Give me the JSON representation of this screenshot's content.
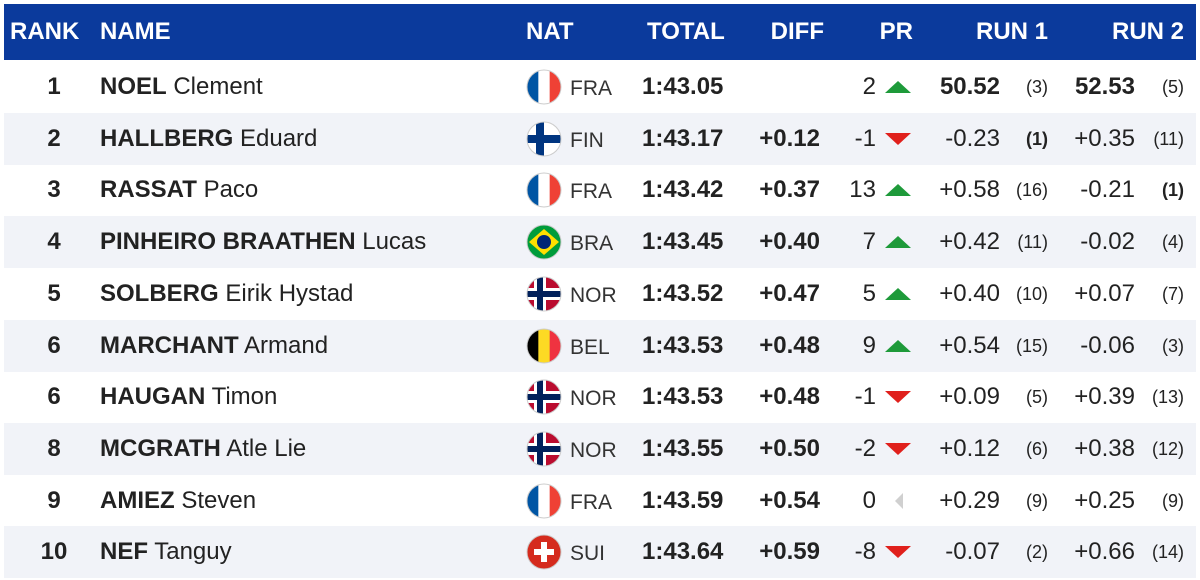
{
  "table": {
    "headers": {
      "rank": "RANK",
      "name": "NAME",
      "nat": "NAT",
      "total": "TOTAL",
      "diff": "DIFF",
      "pr": "PR",
      "run1": "RUN 1",
      "run2": "RUN 2"
    },
    "rows": [
      {
        "rank": "1",
        "surname": "NOEL",
        "firstname": "Clement",
        "nat": "FRA",
        "flag": "vertical",
        "flag_colors": [
          "#0055a4",
          "#ffffff",
          "#ef4135"
        ],
        "total": "1:43.05",
        "pr": "2",
        "trend": "up",
        "run1": {
          "time": "50.52",
          "rank": "(3)"
        },
        "run2": {
          "time": "52.53",
          "rank": "(5)"
        }
      },
      {
        "rank": "2",
        "surname": "HALLBERG",
        "firstname": "Eduard",
        "nat": "FIN",
        "flag": "nordic",
        "flag_colors": [
          "#ffffff",
          "#003580"
        ],
        "total": "1:43.17",
        "diff": "+0.12",
        "pr": "-1",
        "trend": "down",
        "run1": {
          "time": "-0.23",
          "rank": "(1)"
        },
        "run2": {
          "time": "+0.35",
          "rank": "(11)"
        }
      },
      {
        "rank": "3",
        "surname": "RASSAT",
        "firstname": "Paco",
        "nat": "FRA",
        "flag": "vertical",
        "flag_colors": [
          "#0055a4",
          "#ffffff",
          "#ef4135"
        ],
        "total": "1:43.42",
        "diff": "+0.37",
        "pr": "13",
        "trend": "up",
        "run1": {
          "time": "+0.58",
          "rank": "(16)"
        },
        "run2": {
          "time": "-0.21",
          "rank": "(1)"
        }
      },
      {
        "rank": "4",
        "surname": "PINHEIRO BRAATHEN",
        "firstname": "Lucas",
        "nat": "BRA",
        "flag": "brazil",
        "flag_colors": [
          "#009c3b",
          "#ffdf00",
          "#002776"
        ],
        "total": "1:43.45",
        "diff": "+0.40",
        "pr": "7",
        "trend": "up",
        "run1": {
          "time": "+0.42",
          "rank": "(11)"
        },
        "run2": {
          "time": "-0.02",
          "rank": "(4)"
        }
      },
      {
        "rank": "5",
        "surname": "SOLBERG",
        "firstname": "Eirik Hystad",
        "nat": "NOR",
        "flag": "nordic-double",
        "flag_colors": [
          "#ba0c2f",
          "#ffffff",
          "#00205b"
        ],
        "total": "1:43.52",
        "diff": "+0.47",
        "pr": "5",
        "trend": "up",
        "run1": {
          "time": "+0.40",
          "rank": "(10)"
        },
        "run2": {
          "time": "+0.07",
          "rank": "(7)"
        }
      },
      {
        "rank": "6",
        "surname": "MARCHANT",
        "firstname": "Armand",
        "nat": "BEL",
        "flag": "vertical",
        "flag_colors": [
          "#000000",
          "#fdda24",
          "#ef3340"
        ],
        "total": "1:43.53",
        "diff": "+0.48",
        "pr": "9",
        "trend": "up",
        "run1": {
          "time": "+0.54",
          "rank": "(15)"
        },
        "run2": {
          "time": "-0.06",
          "rank": "(3)"
        }
      },
      {
        "rank": "6",
        "surname": "HAUGAN",
        "firstname": "Timon",
        "nat": "NOR",
        "flag": "nordic-double",
        "flag_colors": [
          "#ba0c2f",
          "#ffffff",
          "#00205b"
        ],
        "total": "1:43.53",
        "diff": "+0.48",
        "pr": "-1",
        "trend": "down",
        "run1": {
          "time": "+0.09",
          "rank": "(5)"
        },
        "run2": {
          "time": "+0.39",
          "rank": "(13)"
        }
      },
      {
        "rank": "8",
        "surname": "MCGRATH",
        "firstname": "Atle Lie",
        "nat": "NOR",
        "flag": "nordic-double",
        "flag_colors": [
          "#ba0c2f",
          "#ffffff",
          "#00205b"
        ],
        "total": "1:43.55",
        "diff": "+0.50",
        "pr": "-2",
        "trend": "down",
        "run1": {
          "time": "+0.12",
          "rank": "(6)"
        },
        "run2": {
          "time": "+0.38",
          "rank": "(12)"
        }
      },
      {
        "rank": "9",
        "surname": "AMIEZ",
        "firstname": "Steven",
        "nat": "FRA",
        "flag": "vertical",
        "flag_colors": [
          "#0055a4",
          "#ffffff",
          "#ef4135"
        ],
        "total": "1:43.59",
        "diff": "+0.54",
        "pr": "0",
        "trend": "none",
        "run1": {
          "time": "+0.29",
          "rank": "(9)"
        },
        "run2": {
          "time": "+0.25",
          "rank": "(9)"
        }
      },
      {
        "rank": "10",
        "surname": "NEF",
        "firstname": "Tanguy",
        "nat": "SUI",
        "flag": "swiss",
        "flag_colors": [
          "#d52b1e",
          "#ffffff"
        ],
        "total": "1:43.64",
        "diff": "+0.59",
        "pr": "-8",
        "trend": "down",
        "run1": {
          "time": "-0.07",
          "rank": "(2)"
        },
        "run2": {
          "time": "+0.66",
          "rank": "(14)"
        }
      }
    ]
  }
}
